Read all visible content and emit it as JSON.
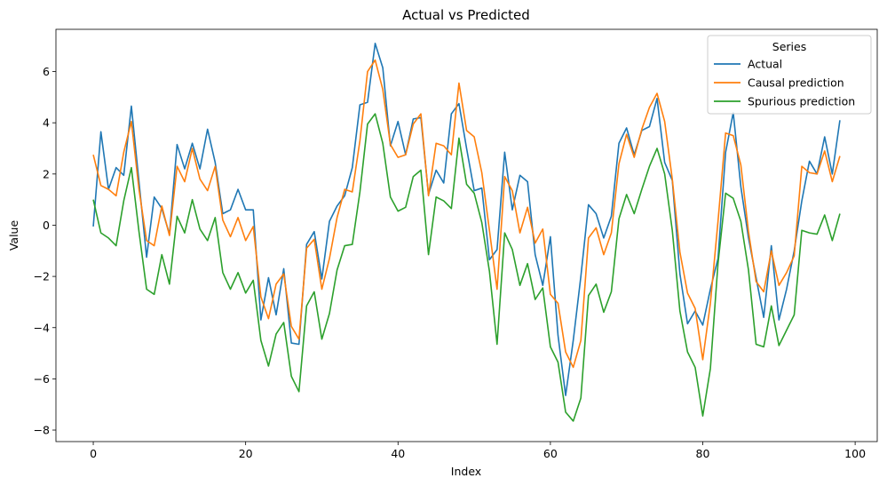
{
  "chart_data": {
    "type": "line",
    "title": "Actual vs Predicted",
    "xlabel": "Index",
    "ylabel": "Value",
    "xlim": [
      -4.9,
      102.9
    ],
    "ylim": [
      -8.45,
      7.65
    ],
    "xticks": [
      0,
      20,
      40,
      60,
      80,
      100
    ],
    "yticks": [
      -8,
      -6,
      -4,
      -2,
      0,
      2,
      4,
      6
    ],
    "grid": false,
    "legend": {
      "title": "Series",
      "placement": "top-right"
    },
    "x": [
      0,
      1,
      2,
      3,
      4,
      5,
      6,
      7,
      8,
      9,
      10,
      11,
      12,
      13,
      14,
      15,
      16,
      17,
      18,
      19,
      20,
      21,
      22,
      23,
      24,
      25,
      26,
      27,
      28,
      29,
      30,
      31,
      32,
      33,
      34,
      35,
      36,
      37,
      38,
      39,
      40,
      41,
      42,
      43,
      44,
      45,
      46,
      47,
      48,
      49,
      50,
      51,
      52,
      53,
      54,
      55,
      56,
      57,
      58,
      59,
      60,
      61,
      62,
      63,
      64,
      65,
      66,
      67,
      68,
      69,
      70,
      71,
      72,
      73,
      74,
      75,
      76,
      77,
      78,
      79,
      80,
      81,
      82,
      83,
      84,
      85,
      86,
      87,
      88,
      89,
      90,
      91,
      92,
      93,
      94,
      95,
      96,
      97,
      98
    ],
    "series": [
      {
        "name": "Actual",
        "color": "#1f77b4",
        "values": [
          -0.05,
          3.65,
          1.4,
          2.25,
          1.95,
          4.65,
          1.7,
          -1.25,
          1.1,
          0.65,
          -0.35,
          3.15,
          2.2,
          3.2,
          2.2,
          3.75,
          2.45,
          0.45,
          0.6,
          1.4,
          0.6,
          0.6,
          -3.7,
          -2.05,
          -3.5,
          -1.7,
          -4.6,
          -4.65,
          -0.75,
          -0.25,
          -2.1,
          0.15,
          0.75,
          1.15,
          2.25,
          4.7,
          4.8,
          7.1,
          6.15,
          3.1,
          4.05,
          2.75,
          4.15,
          4.2,
          1.2,
          2.15,
          1.65,
          4.35,
          4.75,
          3.0,
          1.35,
          1.45,
          -1.35,
          -0.95,
          2.85,
          0.6,
          1.95,
          1.7,
          -1.15,
          -2.35,
          -0.45,
          -4.3,
          -6.65,
          -4.5,
          -2.0,
          0.8,
          0.45,
          -0.5,
          0.35,
          3.2,
          3.8,
          2.75,
          3.7,
          3.85,
          4.95,
          2.45,
          1.75,
          -1.9,
          -3.85,
          -3.35,
          -3.9,
          -2.5,
          -1.3,
          2.85,
          4.4,
          1.5,
          -0.5,
          -2.05,
          -3.6,
          -0.8,
          -3.7,
          -2.5,
          -1.0,
          0.95,
          2.5,
          2.0,
          3.45,
          2.0,
          4.1
        ]
      },
      {
        "name": "Causal prediction",
        "color": "#ff7f0e",
        "values": [
          2.75,
          1.55,
          1.4,
          1.15,
          2.85,
          4.05,
          1.4,
          -0.6,
          -0.8,
          0.75,
          -0.4,
          2.3,
          1.7,
          3.0,
          1.8,
          1.35,
          2.3,
          0.2,
          -0.45,
          0.3,
          -0.6,
          -0.05,
          -2.8,
          -3.65,
          -2.3,
          -1.9,
          -3.95,
          -4.45,
          -0.9,
          -0.55,
          -2.5,
          -1.3,
          0.3,
          1.4,
          1.3,
          3.3,
          6.0,
          6.45,
          5.3,
          3.15,
          2.65,
          2.75,
          3.95,
          4.35,
          1.15,
          3.2,
          3.1,
          2.75,
          5.55,
          3.7,
          3.45,
          2.05,
          -0.2,
          -2.5,
          1.9,
          1.35,
          -0.3,
          0.7,
          -0.7,
          -0.15,
          -2.7,
          -3.05,
          -4.95,
          -5.55,
          -4.5,
          -0.5,
          -0.1,
          -1.15,
          -0.3,
          2.4,
          3.55,
          2.65,
          3.75,
          4.6,
          5.15,
          4.05,
          1.8,
          -1.05,
          -2.65,
          -3.25,
          -5.25,
          -3.05,
          0.15,
          3.6,
          3.5,
          2.35,
          -0.25,
          -2.2,
          -2.6,
          -1.0,
          -2.35,
          -1.85,
          -1.2,
          2.3,
          2.05,
          2.0,
          2.9,
          1.7,
          2.7
        ]
      },
      {
        "name": "Spurious prediction",
        "color": "#2ca02c",
        "values": [
          1.0,
          -0.3,
          -0.5,
          -0.8,
          0.95,
          2.25,
          -0.25,
          -2.5,
          -2.7,
          -1.15,
          -2.3,
          0.35,
          -0.3,
          1.0,
          -0.15,
          -0.6,
          0.3,
          -1.85,
          -2.5,
          -1.85,
          -2.65,
          -2.15,
          -4.5,
          -5.5,
          -4.25,
          -3.8,
          -5.9,
          -6.5,
          -3.15,
          -2.6,
          -4.45,
          -3.45,
          -1.75,
          -0.8,
          -0.75,
          1.3,
          3.95,
          4.35,
          3.2,
          1.1,
          0.55,
          0.7,
          1.9,
          2.15,
          -1.15,
          1.1,
          0.95,
          0.65,
          3.4,
          1.6,
          1.25,
          0.1,
          -1.8,
          -4.65,
          -0.3,
          -0.95,
          -2.35,
          -1.5,
          -2.9,
          -2.45,
          -4.75,
          -5.35,
          -7.3,
          -7.65,
          -6.75,
          -2.75,
          -2.3,
          -3.4,
          -2.6,
          0.25,
          1.2,
          0.45,
          1.4,
          2.3,
          3.0,
          2.0,
          -0.2,
          -3.35,
          -4.95,
          -5.55,
          -7.45,
          -5.6,
          -1.5,
          1.25,
          1.05,
          0.15,
          -1.75,
          -4.65,
          -4.75,
          -3.15,
          -4.7,
          -4.1,
          -3.5,
          -0.2,
          -0.3,
          -0.35,
          0.4,
          -0.6,
          0.45
        ]
      }
    ]
  }
}
